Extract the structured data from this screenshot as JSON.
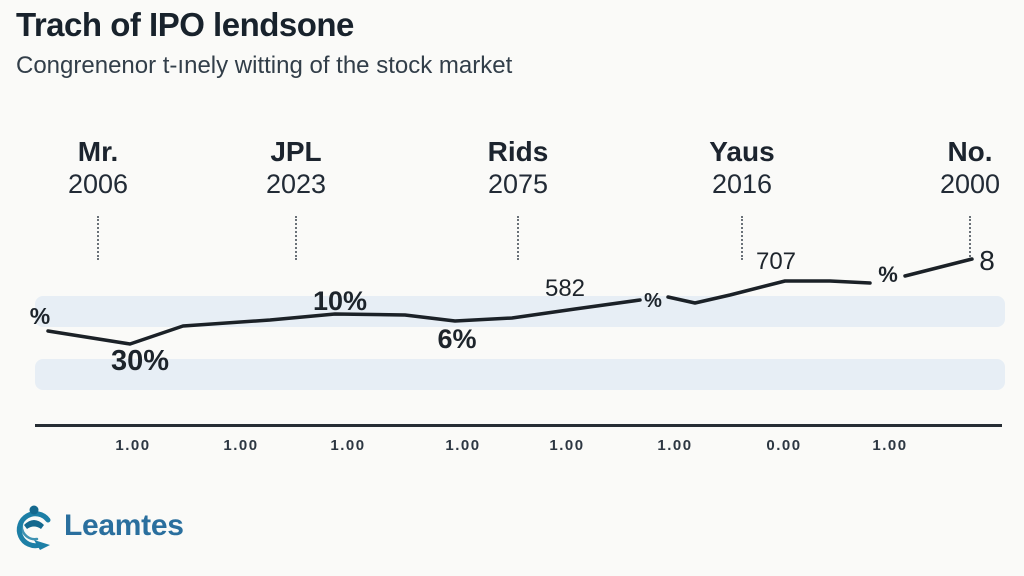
{
  "theme": {
    "background": "#fafaf8",
    "band": "#e7eef5",
    "line": "#1b2127",
    "ink": "#18222c",
    "brand": "#2a6f9e"
  },
  "header": {
    "title": "Trach of IPO lendsone",
    "subtitle": "Congrenenor t-ınely witting of the stock market"
  },
  "chart_data": {
    "type": "line",
    "title": "Trach of IPO lendsone",
    "subtitle": "Congrenenor t-ınely witting of the stock market",
    "grid": "off",
    "legend": "none",
    "milestones": [
      {
        "label": "Mr.",
        "year": "2006"
      },
      {
        "label": "JPL",
        "year": "2023"
      },
      {
        "label": "Rids",
        "year": "2075"
      },
      {
        "label": "Yaus",
        "year": "2016"
      },
      {
        "label": "No.",
        "year": "2000"
      }
    ],
    "point_labels": [
      {
        "text": "%"
      },
      {
        "text": "30%"
      },
      {
        "text": "10%"
      },
      {
        "text": "6%"
      },
      {
        "text": "582"
      },
      {
        "text": "%"
      },
      {
        "text": "707"
      },
      {
        "text": "%"
      },
      {
        "text": "8"
      }
    ],
    "x_axis": {
      "tick_labels": [
        "1.00",
        "1.00",
        "1.00",
        "1.00",
        "1.00",
        "1.00",
        "0.00",
        "1.00"
      ]
    },
    "line_segments": [
      [
        [
          48,
          331
        ],
        [
          130,
          344
        ],
        [
          183,
          326
        ],
        [
          270,
          320
        ],
        [
          335,
          314
        ],
        [
          405,
          315
        ],
        [
          455,
          321
        ],
        [
          512,
          318
        ],
        [
          575,
          309
        ],
        [
          640,
          300
        ]
      ],
      [
        [
          668,
          297
        ],
        [
          695,
          303
        ],
        [
          730,
          295
        ],
        [
          785,
          281
        ],
        [
          830,
          281
        ],
        [
          870,
          283
        ]
      ],
      [
        [
          905,
          276
        ],
        [
          972,
          259
        ]
      ]
    ]
  },
  "footer": {
    "brand": "Leamtes"
  }
}
